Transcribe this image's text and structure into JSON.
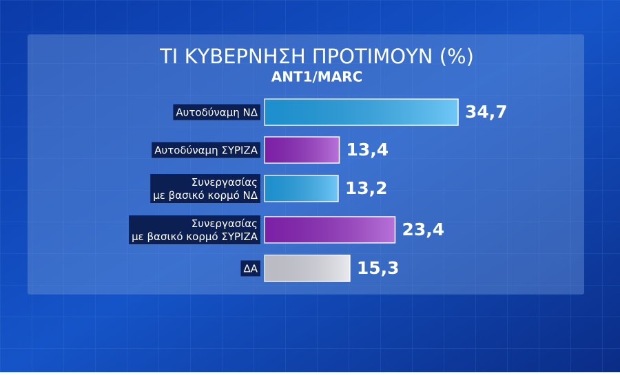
{
  "chart_data": {
    "type": "bar",
    "orientation": "horizontal",
    "title": "ΤΙ ΚΥΒΕΡΝΗΣΗ ΠΡΟΤΙΜΟΥΝ (%)",
    "subtitle": "ANT1/MARC",
    "categories": [
      [
        "Αυτοδύναμη ΝΔ"
      ],
      [
        "Αυτοδύναμη ΣΥΡΙΖΑ"
      ],
      [
        "Συνεργασίας",
        "με βασικό κορμό ΝΔ"
      ],
      [
        "Συνεργασίας",
        "με βασικό κορμό ΣΥΡΙΖΑ"
      ],
      [
        "ΔΑ"
      ]
    ],
    "values": [
      34.7,
      13.4,
      13.2,
      23.4,
      15.3
    ],
    "value_labels": [
      "34,7",
      "13,4",
      "13,2",
      "23,4",
      "15,3"
    ],
    "colors": [
      "#22a9f2",
      "#9226c4",
      "#22a9f2",
      "#9226c4",
      "#dcdce6"
    ]
  }
}
